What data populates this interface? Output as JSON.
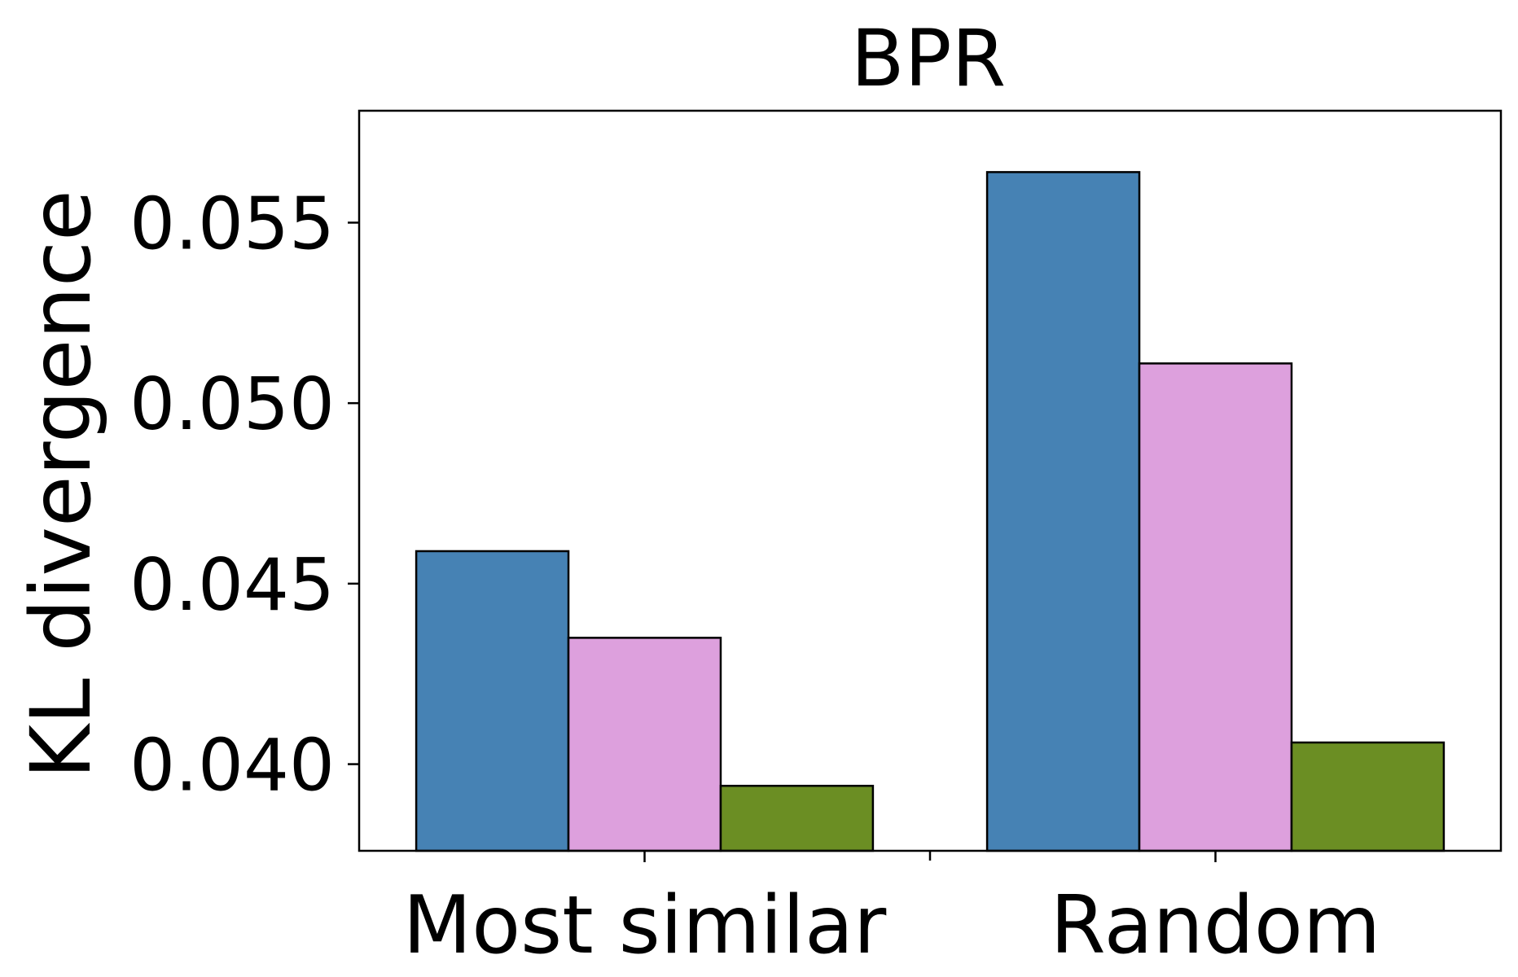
{
  "chart_data": {
    "type": "bar",
    "title": "BPR",
    "xlabel": "",
    "ylabel": "KL divergence",
    "categories": [
      "Most similar",
      "Random"
    ],
    "series": [
      {
        "values": [
          0.0459,
          0.0564
        ],
        "color": "#4682b4"
      },
      {
        "values": [
          0.0435,
          0.0511
        ],
        "color": "#dda0dd"
      },
      {
        "values": [
          0.0394,
          0.0406
        ],
        "color": "#6b8e23"
      }
    ],
    "ylim": [
      0.0376,
      0.0581
    ],
    "yticks": [
      0.04,
      0.045,
      0.05,
      0.055
    ],
    "ytick_labels": [
      "0.040",
      "0.045",
      "0.050",
      "0.055"
    ],
    "grid": false,
    "legend": "none"
  }
}
